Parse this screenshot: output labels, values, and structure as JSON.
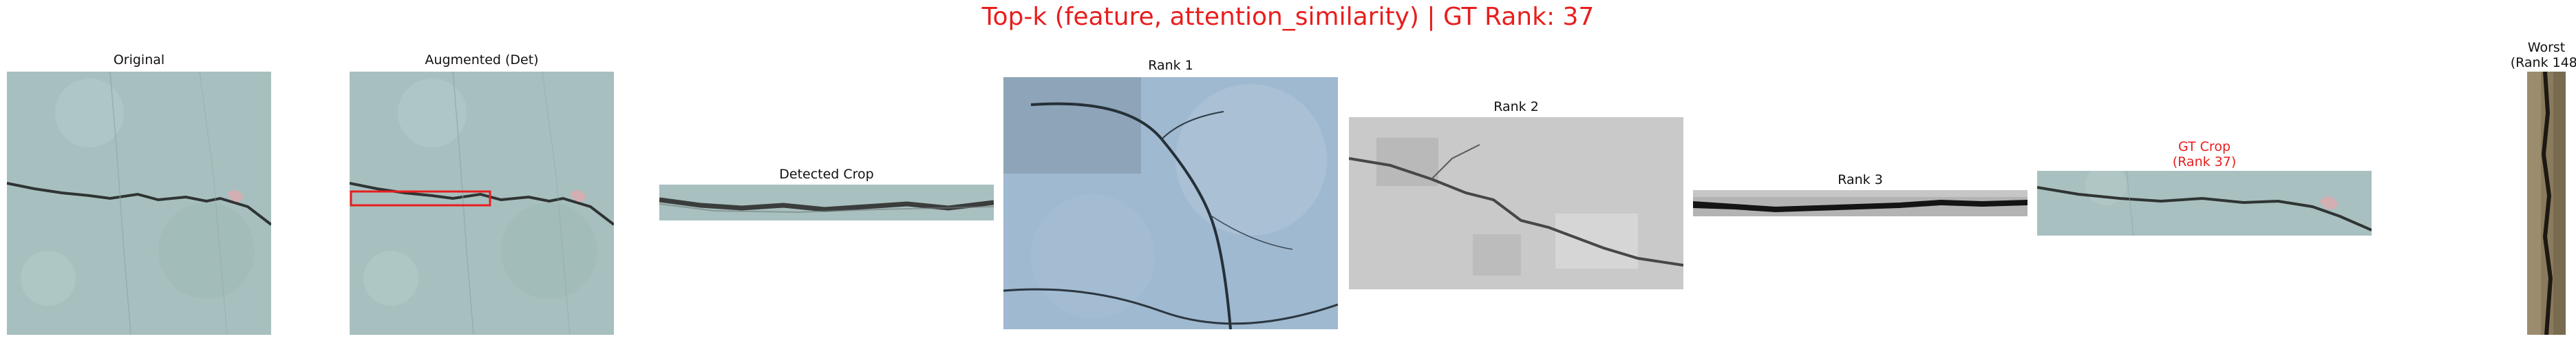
{
  "title": "Top-k (feature, attention_similarity) | GT Rank: 37",
  "panels": {
    "original": "Original",
    "augmented": "Augmented (Det)",
    "detected": "Detected Crop",
    "rank1": "Rank 1",
    "rank2": "Rank 2",
    "rank3": "Rank 3",
    "gt": "GT Crop\n(Rank 37)",
    "worst": "Worst\n(Rank 148)"
  },
  "colors": {
    "title": "#e81e1e",
    "gt_caption": "#e81e1e",
    "detection_box": "#e81e1e",
    "concrete": "#a9c0c0",
    "crack": "#2f3433"
  }
}
